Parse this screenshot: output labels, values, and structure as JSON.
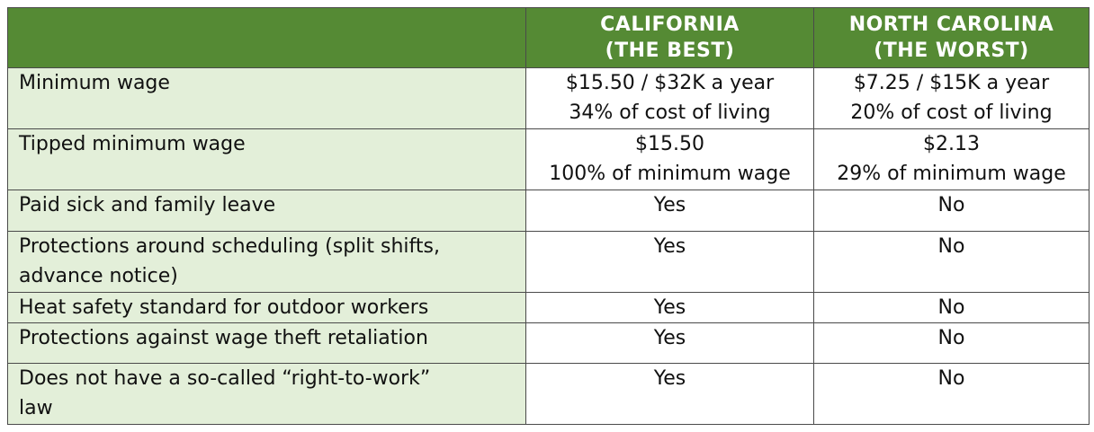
{
  "columns": [
    {
      "line1": "CALIFORNIA",
      "line2": "(THE BEST)"
    },
    {
      "line1": "NORTH CAROLINA",
      "line2": "(THE WORST)"
    }
  ],
  "rows": [
    {
      "label": "Minimum wage",
      "ca_main": "$15.50 / $32K a year",
      "ca_sub": "34% of cost of living",
      "nc_main": "$7.25 / $15K a year",
      "nc_sub": "20% of cost of living"
    },
    {
      "label": "Tipped minimum wage",
      "ca_main": "$15.50",
      "ca_sub": "100% of minimum wage",
      "nc_main": "$2.13",
      "nc_sub": "29% of minimum wage"
    },
    {
      "label": "Paid sick and family leave",
      "ca_main": "Yes",
      "nc_main": "No"
    },
    {
      "label_line1": "Protections around scheduling (split shifts,",
      "label_line2": "advance notice)",
      "ca_main": "Yes",
      "nc_main": "No"
    },
    {
      "label": "Heat safety standard for outdoor workers",
      "ca_main": "Yes",
      "nc_main": "No"
    },
    {
      "label": "Protections against wage theft retaliation",
      "ca_main": "Yes",
      "nc_main": "No"
    },
    {
      "label_line1": "Does not have a so-called “right-to-work”",
      "label_line2": "law",
      "ca_main": "Yes",
      "nc_main": "No"
    }
  ],
  "colors": {
    "header_bg": "#558a34",
    "label_bg": "#e3efd9",
    "header_text": "#ffffff"
  }
}
